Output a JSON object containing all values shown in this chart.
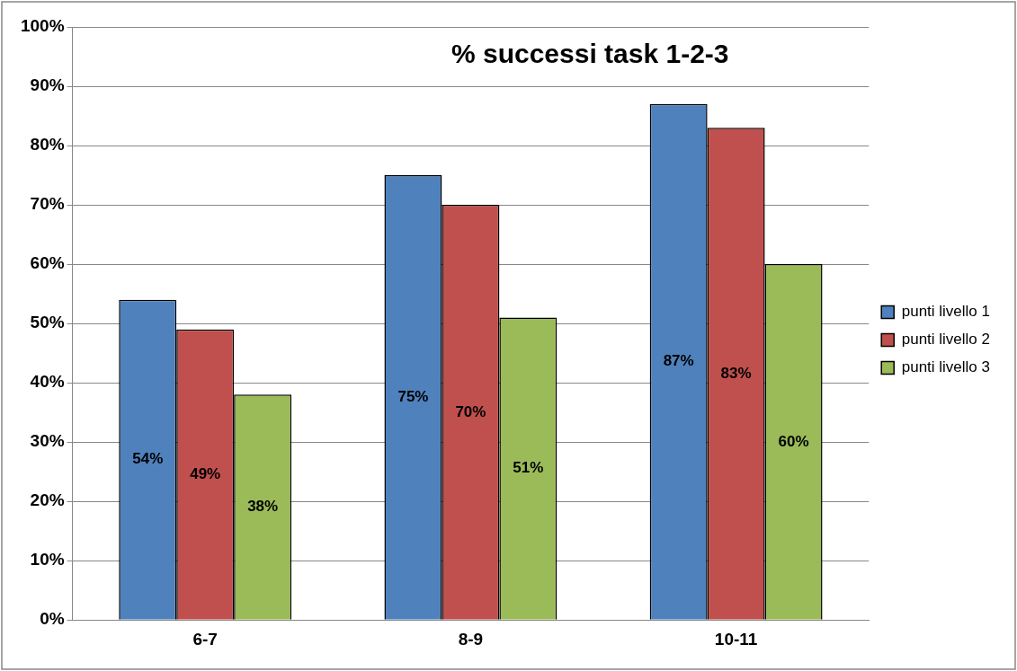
{
  "chart_data": {
    "type": "bar",
    "title": "% successi task 1-2-3",
    "categories": [
      "6-7",
      "8-9",
      "10-11"
    ],
    "series": [
      {
        "name": "punti livello 1",
        "color": "#4f81bd",
        "values": [
          54,
          75,
          87
        ],
        "value_labels": [
          "54%",
          "75%",
          "87%"
        ]
      },
      {
        "name": "punti livello 2",
        "color": "#c0504d",
        "values": [
          49,
          70,
          83
        ],
        "value_labels": [
          "49%",
          "70%",
          "83%"
        ]
      },
      {
        "name": "punti livello 3",
        "color": "#9bbb59",
        "values": [
          38,
          51,
          60
        ],
        "value_labels": [
          "38%",
          "51%",
          "60%"
        ]
      }
    ],
    "ylim": [
      0,
      100
    ],
    "yticks": [
      {
        "value": 0,
        "label": "0%"
      },
      {
        "value": 10,
        "label": "10%"
      },
      {
        "value": 20,
        "label": "20%"
      },
      {
        "value": 30,
        "label": "30%"
      },
      {
        "value": 40,
        "label": "40%"
      },
      {
        "value": 50,
        "label": "50%"
      },
      {
        "value": 60,
        "label": "60%"
      },
      {
        "value": 70,
        "label": "70%"
      },
      {
        "value": 80,
        "label": "80%"
      },
      {
        "value": 90,
        "label": "90%"
      },
      {
        "value": 100,
        "label": "100%"
      }
    ],
    "grid": "y",
    "legend": "right"
  }
}
